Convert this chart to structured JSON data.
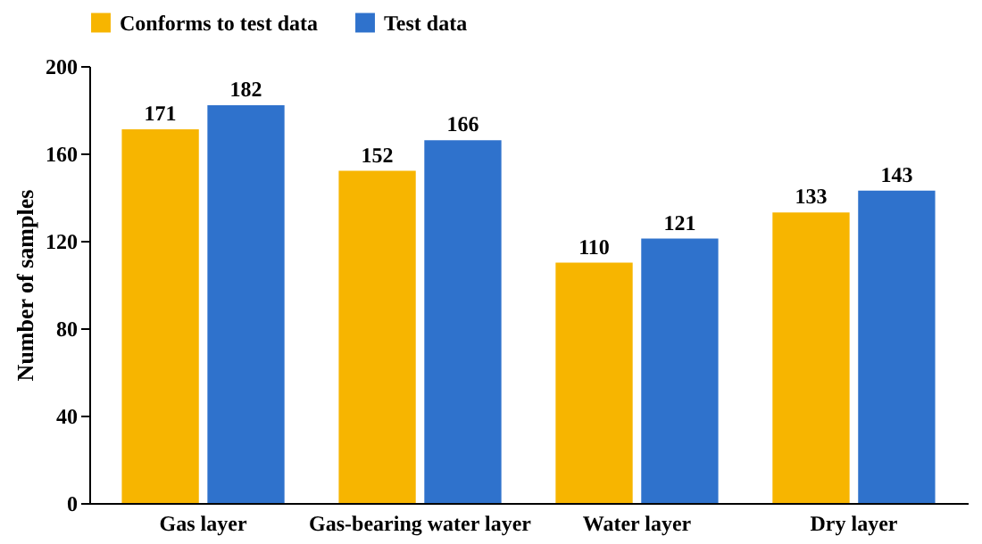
{
  "chart_data": {
    "type": "bar",
    "ylabel": "Number of samples",
    "categories": [
      "Gas layer",
      "Gas-bearing water layer",
      "Water layer",
      "Dry layer"
    ],
    "series": [
      {
        "name": "Conforms to test data",
        "color": "#f7b500",
        "values": [
          171,
          152,
          110,
          133
        ]
      },
      {
        "name": "Test data",
        "color": "#2f72cc",
        "values": [
          182,
          166,
          121,
          143
        ]
      }
    ],
    "ylim": [
      0,
      200
    ],
    "yticks": [
      0,
      40,
      80,
      120,
      160,
      200
    ],
    "grid": false,
    "legend": "top",
    "data_labels": true
  }
}
